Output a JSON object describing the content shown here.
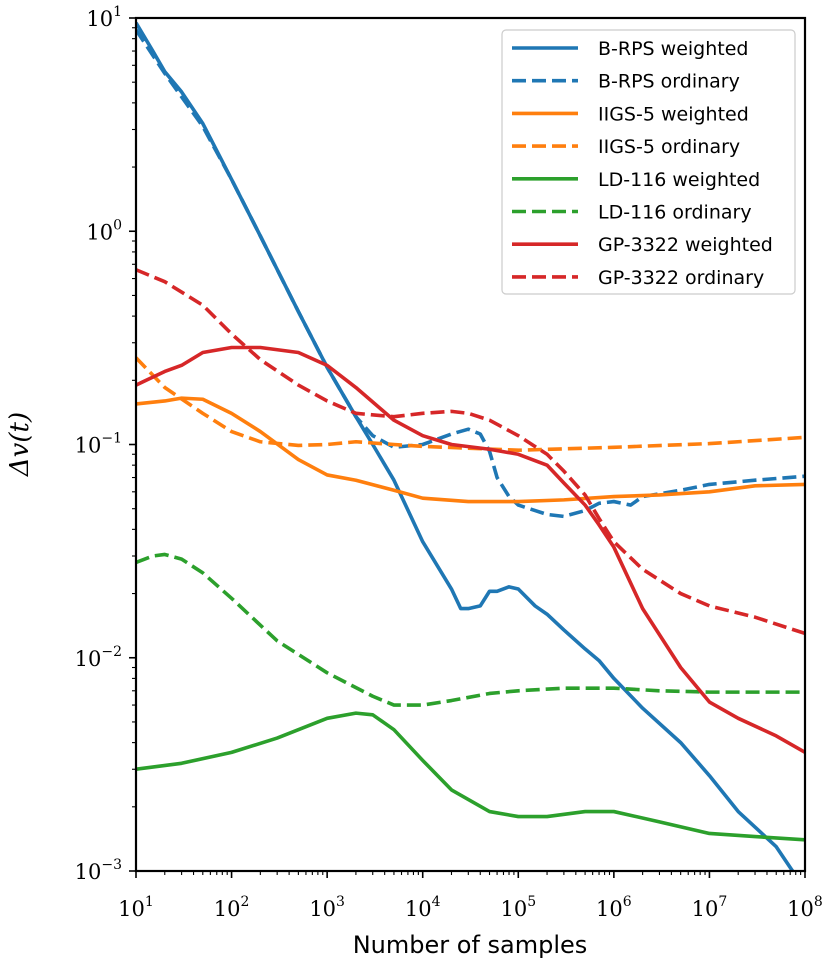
{
  "chart_data": {
    "type": "line",
    "xscale": "log",
    "yscale": "log",
    "xlabel": "Number of samples",
    "ylabel": "Δv(t)",
    "xlim": [
      10,
      100000000
    ],
    "ylim": [
      0.001,
      10
    ],
    "legend_position": "top-right",
    "xticks": [
      {
        "value": 10,
        "base": "10",
        "exp": "1"
      },
      {
        "value": 100,
        "base": "10",
        "exp": "2"
      },
      {
        "value": 1000,
        "base": "10",
        "exp": "3"
      },
      {
        "value": 10000,
        "base": "10",
        "exp": "4"
      },
      {
        "value": 100000,
        "base": "10",
        "exp": "5"
      },
      {
        "value": 1000000,
        "base": "10",
        "exp": "6"
      },
      {
        "value": 10000000,
        "base": "10",
        "exp": "7"
      },
      {
        "value": 100000000,
        "base": "10",
        "exp": "8"
      }
    ],
    "yticks": [
      {
        "value": 0.001,
        "base": "10",
        "exp": "−3"
      },
      {
        "value": 0.01,
        "base": "10",
        "exp": "−2"
      },
      {
        "value": 0.1,
        "base": "10",
        "exp": "−1"
      },
      {
        "value": 1,
        "base": "10",
        "exp": "0"
      },
      {
        "value": 10,
        "base": "10",
        "exp": "1"
      }
    ],
    "series": [
      {
        "name": "B-RPS weighted",
        "color": "#1f77b4",
        "dash": "solid",
        "x": [
          10,
          15,
          20,
          30,
          50,
          100,
          200,
          500,
          1000,
          2000,
          3000,
          5000,
          10000,
          20000,
          25000,
          30000,
          40000,
          50000,
          60000,
          80000,
          100000,
          150000,
          200000,
          300000,
          500000,
          700000,
          1000000,
          2000000,
          5000000,
          10000000,
          20000000,
          50000000,
          80000000
        ],
        "y": [
          9.5,
          7,
          5.6,
          4.5,
          3.2,
          1.75,
          0.95,
          0.42,
          0.23,
          0.135,
          0.1,
          0.068,
          0.035,
          0.021,
          0.017,
          0.017,
          0.0175,
          0.0205,
          0.0205,
          0.0215,
          0.021,
          0.0175,
          0.016,
          0.0135,
          0.011,
          0.0097,
          0.008,
          0.0058,
          0.004,
          0.0028,
          0.0019,
          0.0013,
          0.00095
        ]
      },
      {
        "name": "B-RPS ordinary",
        "color": "#1f77b4",
        "dash": "dashed",
        "x": [
          10,
          20,
          50,
          100,
          200,
          500,
          1000,
          2000,
          3000,
          5000,
          10000,
          20000,
          30000,
          40000,
          50000,
          60000,
          80000,
          100000,
          150000,
          200000,
          300000,
          500000,
          700000,
          1000000,
          1500000,
          2000000,
          5000000,
          10000000,
          30000000,
          100000000
        ],
        "y": [
          8.8,
          5.5,
          3.1,
          1.75,
          0.95,
          0.42,
          0.23,
          0.135,
          0.11,
          0.097,
          0.1,
          0.112,
          0.118,
          0.112,
          0.093,
          0.07,
          0.057,
          0.052,
          0.049,
          0.047,
          0.046,
          0.049,
          0.053,
          0.054,
          0.052,
          0.057,
          0.061,
          0.065,
          0.068,
          0.071
        ]
      },
      {
        "name": "IIGS-5 weighted",
        "color": "#ff7f0e",
        "dash": "solid",
        "x": [
          10,
          20,
          30,
          50,
          100,
          200,
          500,
          1000,
          2000,
          5000,
          10000,
          30000,
          100000,
          300000,
          1000000,
          3000000,
          10000000,
          30000000,
          100000000
        ],
        "y": [
          0.155,
          0.16,
          0.165,
          0.163,
          0.14,
          0.115,
          0.085,
          0.072,
          0.068,
          0.061,
          0.056,
          0.054,
          0.054,
          0.055,
          0.057,
          0.058,
          0.06,
          0.064,
          0.065
        ]
      },
      {
        "name": "IIGS-5 ordinary",
        "color": "#ff7f0e",
        "dash": "dashed",
        "x": [
          10,
          20,
          50,
          100,
          200,
          500,
          1000,
          2000,
          5000,
          10000,
          100000,
          1000000,
          10000000,
          100000000
        ],
        "y": [
          0.255,
          0.185,
          0.14,
          0.115,
          0.103,
          0.099,
          0.1,
          0.103,
          0.1,
          0.098,
          0.094,
          0.097,
          0.101,
          0.108
        ]
      },
      {
        "name": "LD-116 weighted",
        "color": "#2ca02c",
        "dash": "solid",
        "x": [
          10,
          30,
          100,
          300,
          1000,
          2000,
          3000,
          5000,
          10000,
          20000,
          50000,
          100000,
          200000,
          500000,
          1000000,
          3000000,
          10000000,
          30000000,
          100000000
        ],
        "y": [
          0.003,
          0.0032,
          0.0036,
          0.0042,
          0.0052,
          0.0055,
          0.0054,
          0.0046,
          0.0033,
          0.0024,
          0.0019,
          0.0018,
          0.0018,
          0.0019,
          0.0019,
          0.0017,
          0.0015,
          0.00145,
          0.0014
        ]
      },
      {
        "name": "LD-116 ordinary",
        "color": "#2ca02c",
        "dash": "dashed",
        "x": [
          10,
          15,
          20,
          30,
          50,
          100,
          300,
          1000,
          3000,
          5000,
          10000,
          20000,
          50000,
          100000,
          300000,
          1000000,
          3000000,
          10000000,
          100000000
        ],
        "y": [
          0.028,
          0.03,
          0.0305,
          0.029,
          0.025,
          0.019,
          0.012,
          0.0085,
          0.0066,
          0.006,
          0.006,
          0.0063,
          0.0068,
          0.007,
          0.0072,
          0.0072,
          0.007,
          0.0069,
          0.0069
        ]
      },
      {
        "name": "GP-3322 weighted",
        "color": "#d62728",
        "dash": "solid",
        "x": [
          10,
          20,
          30,
          50,
          100,
          200,
          500,
          1000,
          2000,
          5000,
          10000,
          20000,
          50000,
          100000,
          200000,
          300000,
          500000,
          700000,
          1000000,
          2000000,
          5000000,
          10000000,
          20000000,
          50000000,
          100000000
        ],
        "y": [
          0.19,
          0.22,
          0.235,
          0.27,
          0.285,
          0.285,
          0.27,
          0.235,
          0.185,
          0.13,
          0.11,
          0.1,
          0.095,
          0.09,
          0.08,
          0.066,
          0.052,
          0.042,
          0.033,
          0.017,
          0.009,
          0.0062,
          0.0052,
          0.0043,
          0.0036
        ]
      },
      {
        "name": "GP-3322 ordinary",
        "color": "#d62728",
        "dash": "dashed",
        "x": [
          10,
          20,
          50,
          100,
          200,
          500,
          1000,
          2000,
          5000,
          10000,
          20000,
          30000,
          50000,
          100000,
          200000,
          300000,
          500000,
          700000,
          1000000,
          2000000,
          5000000,
          10000000,
          30000000,
          100000000
        ],
        "y": [
          0.66,
          0.58,
          0.45,
          0.33,
          0.25,
          0.19,
          0.16,
          0.14,
          0.135,
          0.14,
          0.143,
          0.14,
          0.13,
          0.11,
          0.09,
          0.075,
          0.058,
          0.045,
          0.035,
          0.026,
          0.02,
          0.0175,
          0.0155,
          0.013
        ]
      }
    ]
  }
}
